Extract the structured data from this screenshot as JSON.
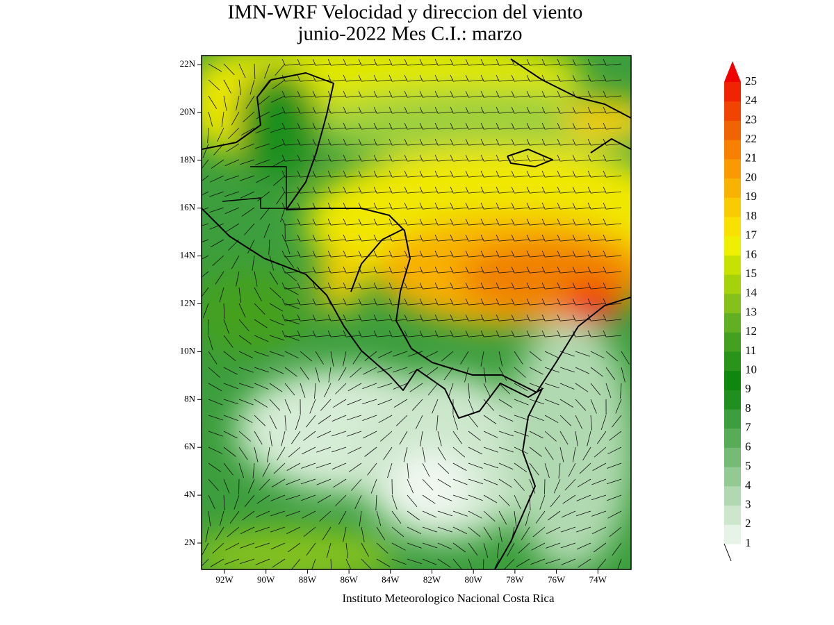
{
  "title": [
    "IMN-WRF Velocidad y direccion del viento",
    "junio-2022 Mes C.I.: marzo"
  ],
  "map": {
    "lat_labels": [
      "22N",
      "20N",
      "18N",
      "16N",
      "14N",
      "12N",
      "10N",
      "8N",
      "6N",
      "4N",
      "2N"
    ],
    "lon_labels": [
      "92W",
      "90W",
      "88W",
      "86W",
      "84W",
      "82W",
      "80W",
      "78W",
      "76W",
      "74W"
    ]
  },
  "colorbar": {
    "levels": [
      1,
      2,
      3,
      4,
      5,
      6,
      7,
      8,
      9,
      10,
      11,
      12,
      13,
      14,
      15,
      16,
      17,
      18,
      19,
      20,
      21,
      22,
      23,
      24,
      25
    ],
    "colors": [
      "#e6f3e6",
      "#cde7cd",
      "#b1d9b1",
      "#93ca93",
      "#75bb75",
      "#58ac58",
      "#3c9e3c",
      "#1f8f1f",
      "#0f870f",
      "#2a941a",
      "#44a01e",
      "#62b022",
      "#84c11a",
      "#a6d20c",
      "#c8e200",
      "#eef000",
      "#f8e000",
      "#f8cc00",
      "#f8b200",
      "#f89a00",
      "#f88000",
      "#f06400",
      "#f04400",
      "#f02400",
      "#f00000"
    ]
  },
  "footer": "Instituto Meteorologico Nacional Costa Rica"
}
